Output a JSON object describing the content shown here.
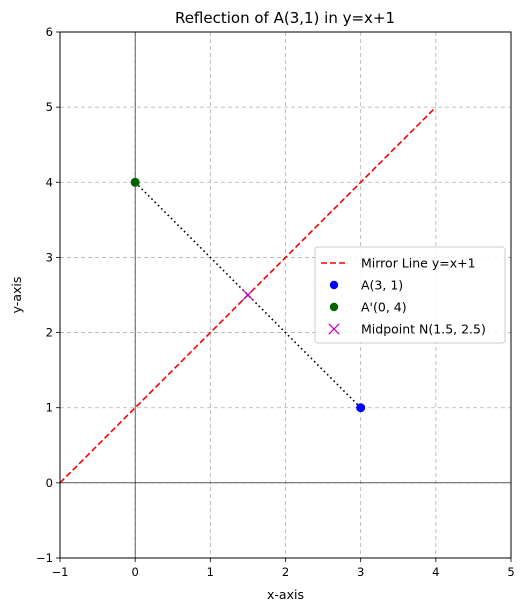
{
  "chart_data": {
    "type": "line",
    "title": "Reflection of A(3,1) in y=x+1",
    "xlabel": "x-axis",
    "ylabel": "y-axis",
    "xlim": [
      -1,
      5
    ],
    "ylim": [
      -1,
      6
    ],
    "xticks": [
      "−1",
      "0",
      "1",
      "2",
      "3",
      "4",
      "5"
    ],
    "yticks": [
      "−1",
      "0",
      "1",
      "2",
      "3",
      "4",
      "5",
      "6"
    ],
    "xtick_values": [
      -1,
      0,
      1,
      2,
      3,
      4,
      5
    ],
    "ytick_values": [
      -1,
      0,
      1,
      2,
      3,
      4,
      5,
      6
    ],
    "grid": true,
    "grid_style": "dashed",
    "legend_position": "center-right",
    "series": [
      {
        "name": "Mirror Line y=x+1",
        "kind": "line",
        "style": "dashed",
        "color": "#ff0000",
        "x": [
          -1,
          4
        ],
        "y": [
          0,
          5
        ]
      },
      {
        "name": "A(3, 1)",
        "kind": "point",
        "marker": "circle",
        "color": "#0000ff",
        "x": [
          3
        ],
        "y": [
          1
        ]
      },
      {
        "name": "A'(0, 4)",
        "kind": "point",
        "marker": "circle",
        "color": "#006400",
        "x": [
          0
        ],
        "y": [
          4
        ]
      },
      {
        "name": "Midpoint N(1.5, 2.5)",
        "kind": "point",
        "marker": "x",
        "color": "#bf00bf",
        "x": [
          1.5
        ],
        "y": [
          2.5
        ]
      }
    ],
    "connector": {
      "style": "dotted",
      "color": "#000000",
      "x": [
        0,
        3
      ],
      "y": [
        4,
        1
      ]
    },
    "reference_lines": {
      "x": 0,
      "y": 0,
      "color": "#000000"
    }
  }
}
